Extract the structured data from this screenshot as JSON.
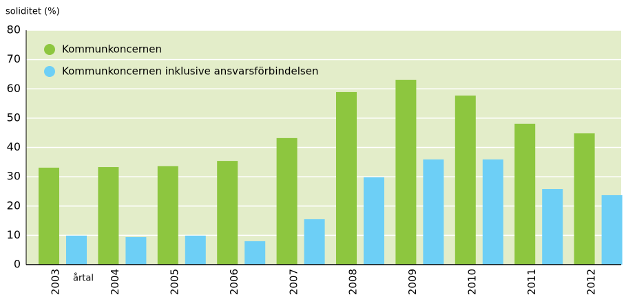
{
  "chart_data": {
    "type": "bar",
    "y_label": "soliditet (%)",
    "x_label": "årtal",
    "categories": [
      "2003",
      "2004",
      "2005",
      "2006",
      "2007",
      "2008",
      "2009",
      "2010",
      "2011",
      "2012"
    ],
    "series": [
      {
        "name": "Kommunkoncernen",
        "color": "#8dc63f",
        "values": [
          33.1,
          33.3,
          33.6,
          35.4,
          43.2,
          58.9,
          63.1,
          57.7,
          48.1,
          44.8
        ]
      },
      {
        "name": "Kommunkoncernen inklusive ansvarsförbindelsen",
        "color": "#6dcff6",
        "values": [
          9.9,
          9.4,
          9.9,
          8.0,
          15.5,
          29.8,
          35.9,
          35.9,
          25.8,
          23.7
        ]
      }
    ],
    "ylim": [
      0,
      80
    ],
    "yticks": [
      0,
      10,
      20,
      30,
      40,
      50,
      60,
      70,
      80
    ],
    "grid": true,
    "legend": "top-left"
  }
}
